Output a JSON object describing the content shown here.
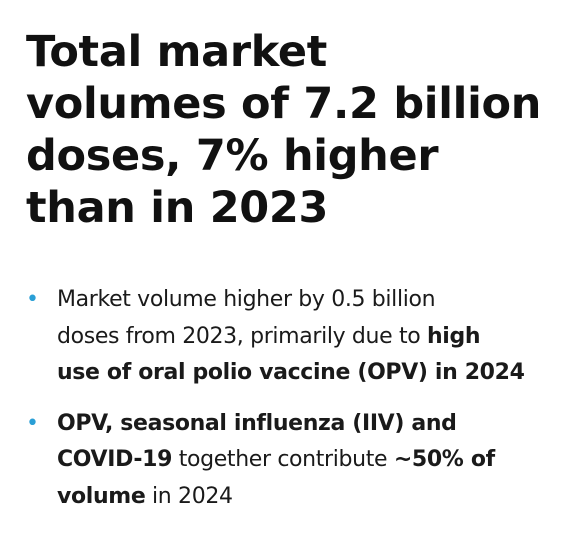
{
  "headline": {
    "lines": [
      "Total market",
      "volumes of 7.2 billion",
      "doses, 7% higher",
      "than in 2023"
    ]
  },
  "bullets": [
    {
      "marker": "•",
      "line1": "Market volume higher by 0.5 billion",
      "line2_plain": "doses from 2023, primarily due to ",
      "line2_bold": "high",
      "line3_bold": "use of oral polio vaccine (OPV) in 2024"
    },
    {
      "marker": "•",
      "line1_bold": "OPV, seasonal influenza (IIV) and",
      "line2_bold_a": "COVID-19",
      "line2_plain": " together contribute ",
      "line2_bold_b": "~50% of",
      "line3_bold": "volume",
      "line3_plain": " in 2024"
    }
  ],
  "colors": {
    "text": "#111111",
    "bullet_marker": "#2a9fd6",
    "background": "#ffffff"
  }
}
